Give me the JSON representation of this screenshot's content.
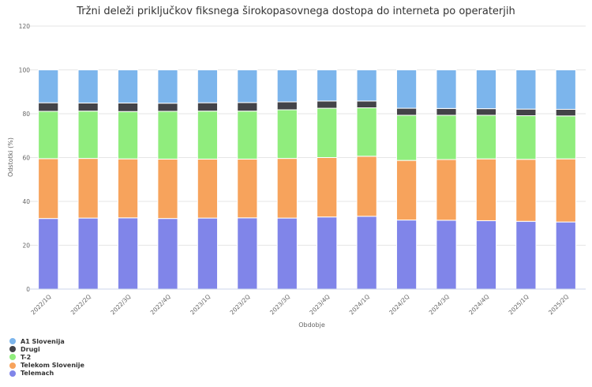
{
  "chart_data": {
    "type": "bar",
    "stacked": true,
    "title": "Tržni deleži priključkov fiksnega širokopasovnega dostopa do interneta po operaterjih",
    "xlabel": "Obdobje",
    "ylabel": "Odstotki (%)",
    "ylim": [
      0,
      120
    ],
    "yticks": [
      0,
      20,
      40,
      60,
      80,
      100,
      120
    ],
    "grid": true,
    "legend_position": "bottom-left",
    "categories": [
      "2022/1Q",
      "2022/2Q",
      "2022/3Q",
      "2022/4Q",
      "2023/1Q",
      "2023/2Q",
      "2023/3Q",
      "2023/4Q",
      "2024/1Q",
      "2024/2Q",
      "2024/3Q",
      "2024/4Q",
      "2025/1Q",
      "2025/2Q"
    ],
    "series": [
      {
        "name": "Telemach",
        "color": "#8085e9",
        "values": [
          32.2,
          32.4,
          32.5,
          32.2,
          32.4,
          32.5,
          32.4,
          32.9,
          33.2,
          31.5,
          31.4,
          31.2,
          30.9,
          30.6
        ]
      },
      {
        "name": "Telekom Slovenije",
        "color": "#f7a35c",
        "values": [
          27.3,
          27.2,
          26.9,
          27.1,
          26.9,
          26.8,
          27.2,
          27.1,
          27.4,
          27.2,
          27.7,
          28.2,
          28.3,
          28.8
        ]
      },
      {
        "name": "T-2",
        "color": "#90ed7d",
        "values": [
          21.6,
          21.6,
          21.6,
          21.8,
          21.9,
          21.9,
          22.2,
          22.5,
          22.1,
          20.6,
          20.2,
          19.9,
          19.9,
          19.6
        ]
      },
      {
        "name": "Drugi",
        "color": "#434348",
        "values": [
          3.9,
          3.7,
          3.9,
          3.7,
          3.8,
          3.9,
          3.6,
          3.3,
          3.1,
          3.2,
          3.1,
          3.0,
          3.0,
          3.0
        ]
      },
      {
        "name": "A1 Slovenija",
        "color": "#7cb5ec",
        "values": [
          15.0,
          15.1,
          15.1,
          15.2,
          15.0,
          14.9,
          14.6,
          14.2,
          14.2,
          17.5,
          17.6,
          17.7,
          17.9,
          18.0
        ]
      }
    ],
    "legend_order": [
      "A1 Slovenija",
      "Drugi",
      "T-2",
      "Telekom Slovenije",
      "Telemach"
    ]
  }
}
